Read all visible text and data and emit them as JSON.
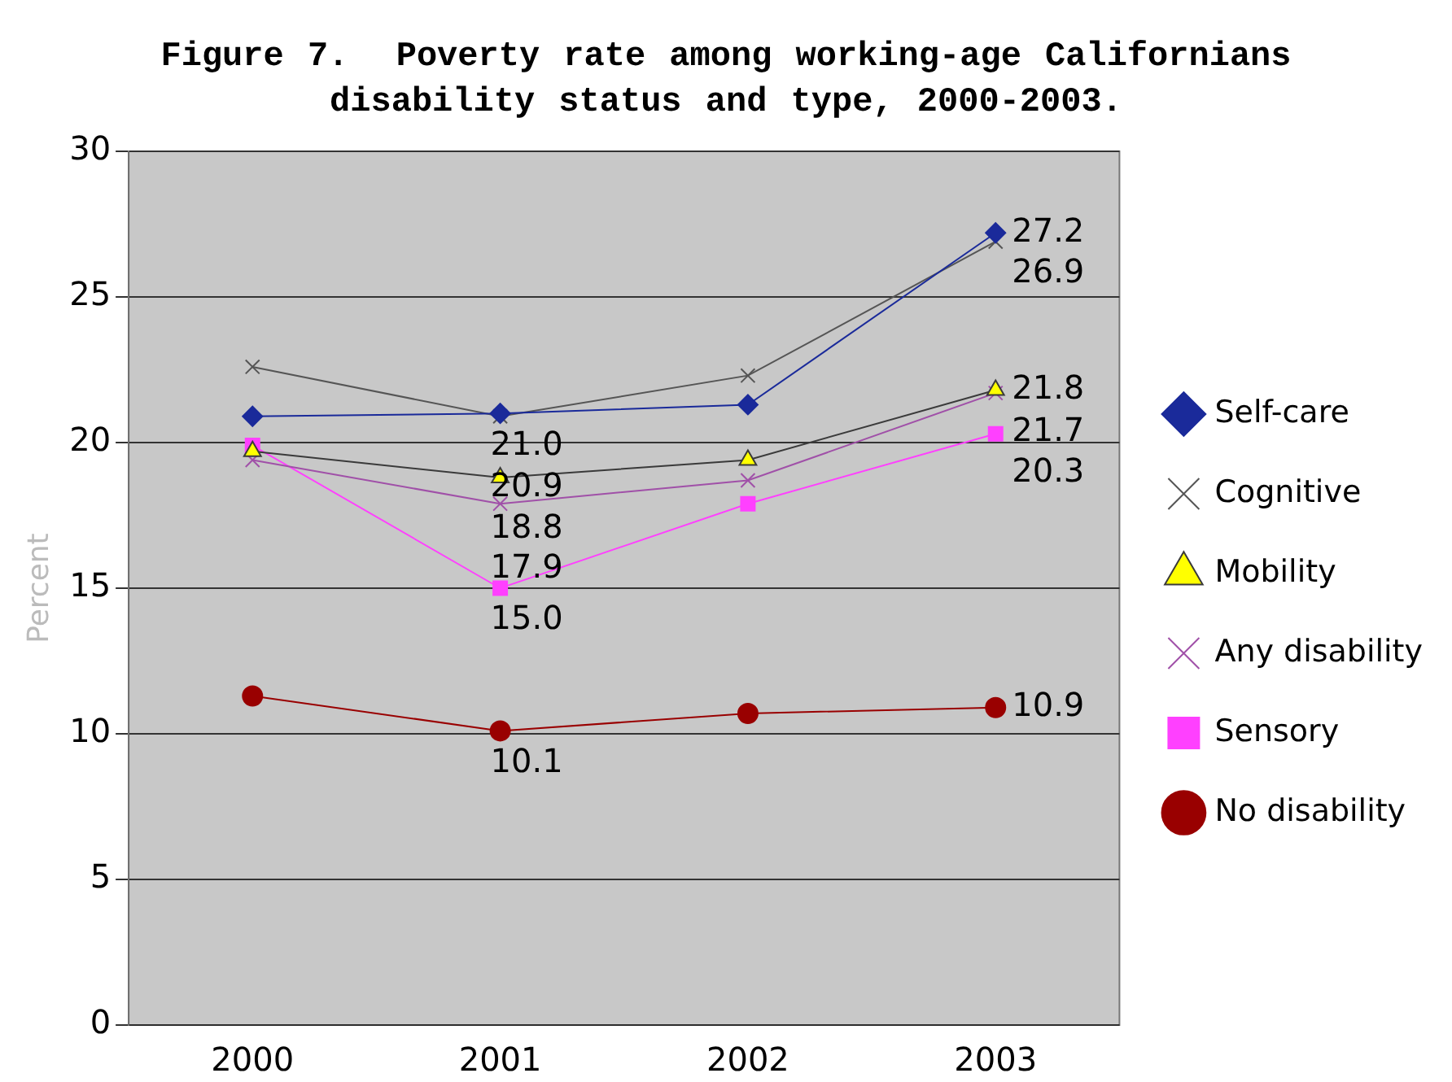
{
  "chart_data": {
    "type": "line",
    "title": "Figure 7.  Poverty rate among working-age Californians\ndisability status and type, 2000-2003.",
    "ylabel": "Percent",
    "categories": [
      "2000",
      "2001",
      "2002",
      "2003"
    ],
    "series": [
      {
        "name": "Self-care",
        "color": "#1a2a9a",
        "marker": "diamond",
        "values": [
          20.9,
          21.0,
          21.3,
          27.2
        ],
        "value_labels": [
          null,
          "21.0",
          null,
          "27.2"
        ]
      },
      {
        "name": "Cognitive",
        "color": "#555555",
        "marker": "cross",
        "values": [
          22.6,
          20.9,
          22.3,
          26.9
        ],
        "value_labels": [
          null,
          "20.9",
          null,
          "26.9"
        ]
      },
      {
        "name": "Mobility",
        "color": "#3a3a3a",
        "marker": "triangle",
        "values": [
          19.7,
          18.8,
          19.4,
          21.8
        ],
        "value_labels": [
          null,
          "18.8",
          null,
          "21.8"
        ]
      },
      {
        "name": "Any disability",
        "color": "#a050a8",
        "marker": "cross",
        "values": [
          19.4,
          17.9,
          18.7,
          21.7
        ],
        "value_labels": [
          null,
          "17.9",
          null,
          "21.7"
        ]
      },
      {
        "name": "Sensory",
        "color": "#ff40ff",
        "marker": "square",
        "values": [
          19.9,
          15.0,
          17.9,
          20.3
        ],
        "value_labels": [
          null,
          "15.0",
          null,
          "20.3"
        ]
      },
      {
        "name": "No disability",
        "color": "#990000",
        "marker": "circle",
        "values": [
          11.3,
          10.1,
          10.7,
          10.9
        ],
        "value_labels": [
          null,
          "10.1",
          null,
          "10.9"
        ]
      }
    ],
    "ylim": [
      0,
      30
    ],
    "yticks": [
      0,
      5,
      10,
      15,
      20,
      25,
      30
    ],
    "grid": "y",
    "legend": "right"
  }
}
